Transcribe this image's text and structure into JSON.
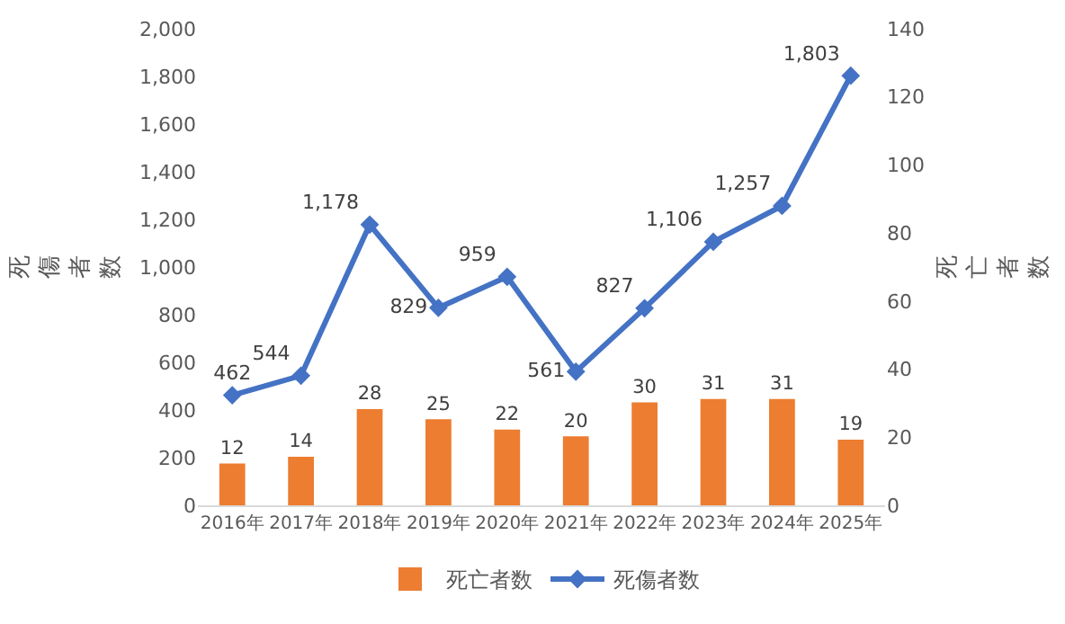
{
  "chart_data": {
    "type": "bar",
    "categories": [
      "2016年",
      "2017年",
      "2018年",
      "2019年",
      "2020年",
      "2021年",
      "2022年",
      "2023年",
      "2024年",
      "2025年"
    ],
    "series": [
      {
        "name": "死亡者数",
        "axis": "y2",
        "color": "#ed7d31",
        "values": [
          12,
          14,
          28,
          25,
          22,
          20,
          30,
          31,
          31,
          19
        ]
      },
      {
        "name": "死傷者数",
        "type": "line",
        "color": "#4472c4",
        "values": [
          462,
          544,
          1178,
          829,
          959,
          561,
          827,
          1106,
          1257,
          1803
        ],
        "value_labels": [
          "462",
          "544",
          "1,178",
          "829",
          "959",
          "561",
          "827",
          "1,106",
          "1,257",
          "1,803"
        ]
      }
    ],
    "ylabel": "死傷者数",
    "y2label": "死亡者数",
    "ylim": [
      0,
      2000
    ],
    "yticks": [
      0,
      200,
      400,
      600,
      800,
      {
        "value": 1000,
        "label": "1,000"
      },
      {
        "value": 1200,
        "label": "1,200"
      },
      {
        "value": 1400,
        "label": "1,400"
      },
      {
        "value": 1600,
        "label": "1,600"
      },
      {
        "value": 1800,
        "label": "1,800"
      },
      {
        "value": 2000,
        "label": "2,000"
      }
    ],
    "y2lim": [
      0,
      140
    ],
    "y2ticks": [
      0,
      20,
      40,
      60,
      80,
      100,
      120,
      140
    ],
    "data_labels": true,
    "legend": "bottom",
    "marker": "diamond",
    "line_style": "solid"
  }
}
